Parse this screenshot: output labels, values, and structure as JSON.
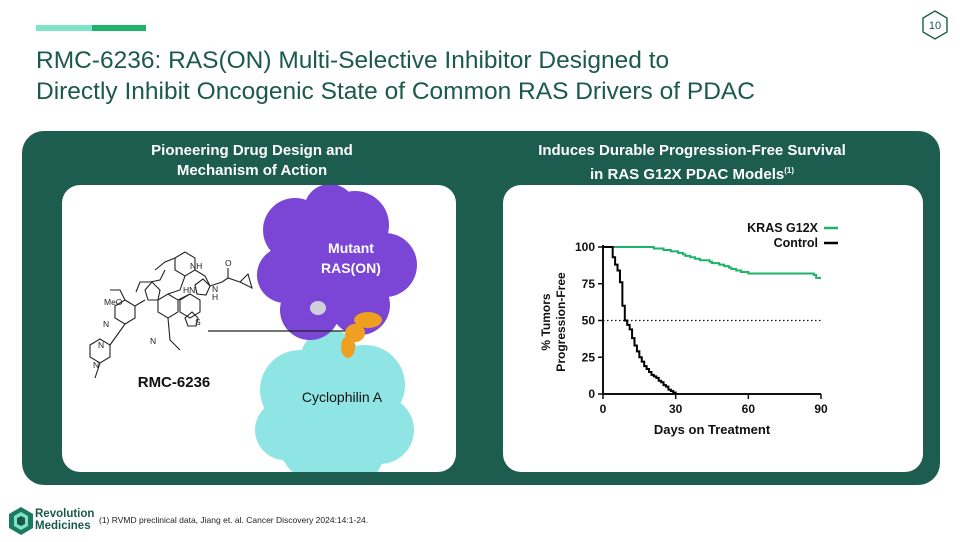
{
  "page_number": "10",
  "title_line1": "RMC-6236: RAS(ON) Multi-Selective Inhibitor Designed to",
  "title_line2": "Directly Inhibit Oncogenic State of Common RAS Drivers of PDAC",
  "left_panel": {
    "heading_line1": "Pioneering Drug Design and",
    "heading_line2": "Mechanism of Action",
    "molecule_name": "RMC-6236",
    "label_meo": "MeO",
    "label_n_ring": "N",
    "label_hn": "HN",
    "label_nh": "NH",
    "label_n_amide": "N",
    "label_h_amide": "H",
    "label_o": "O",
    "label_s": "S",
    "label_n_indole": "N",
    "label_n_piperazine1": "N",
    "label_n_piperazine2": "N",
    "mutant_label_line1": "Mutant",
    "mutant_label_line2": "RAS(ON)",
    "cyclophilin_label": "Cyclophilin A",
    "colors": {
      "mutant_protein": "#7b45d6",
      "cyclophilin": "#8fe4e4",
      "drug": "#f0a020"
    }
  },
  "right_panel": {
    "heading_line1": "Induces Durable Progression-Free Survival",
    "heading_line2": "in RAS G12X PDAC Models",
    "heading_sup": "(1)"
  },
  "chart_data": {
    "type": "line",
    "ylabel_line1": "% Tumors",
    "ylabel_line2": "Progression-Free",
    "xlabel": "Days on Treatment",
    "xlim": [
      0,
      90
    ],
    "ylim": [
      0,
      100
    ],
    "xticks": [
      0,
      30,
      60,
      90
    ],
    "yticks": [
      0,
      25,
      50,
      75,
      100
    ],
    "reference_line": 50,
    "legend_position": "top-right",
    "series": [
      {
        "name": "KRAS G12X",
        "color": "#1db368",
        "x": [
          0,
          20,
          21,
          24,
          25,
          27,
          28,
          30,
          31,
          32,
          33,
          34,
          36,
          38,
          40,
          42,
          44,
          45,
          46,
          48,
          50,
          52,
          53,
          55,
          57,
          60,
          62,
          66,
          70,
          74,
          78,
          82,
          86,
          87,
          88,
          89,
          90
        ],
        "y": [
          100,
          100,
          99,
          99,
          98,
          98,
          97,
          97,
          96,
          96,
          95,
          94,
          93,
          92,
          91,
          91,
          90,
          89,
          89,
          88,
          87,
          86,
          85,
          84,
          83,
          82,
          82,
          82,
          82,
          82,
          82,
          82,
          82,
          81,
          79,
          79,
          79
        ]
      },
      {
        "name": "Control",
        "color": "#000000",
        "x": [
          0,
          3,
          4,
          5,
          6,
          7,
          8,
          9,
          10,
          11,
          12,
          13,
          14,
          15,
          16,
          17,
          18,
          19,
          20,
          21,
          22,
          23,
          24,
          25,
          26,
          27,
          28,
          29,
          30
        ],
        "y": [
          100,
          100,
          93,
          88,
          84,
          76,
          60,
          50,
          47,
          44,
          38,
          33,
          29,
          25,
          22,
          19,
          17,
          15,
          13,
          12,
          11,
          9,
          8,
          6,
          5,
          3,
          2,
          1,
          0
        ]
      }
    ]
  },
  "footer": {
    "brand_line1": "Revolution",
    "brand_line2": "Medicines",
    "footnote": "(1) RVMD preclinical data, Jiang et. al. Cancer Discovery 2024:14:1-24."
  }
}
